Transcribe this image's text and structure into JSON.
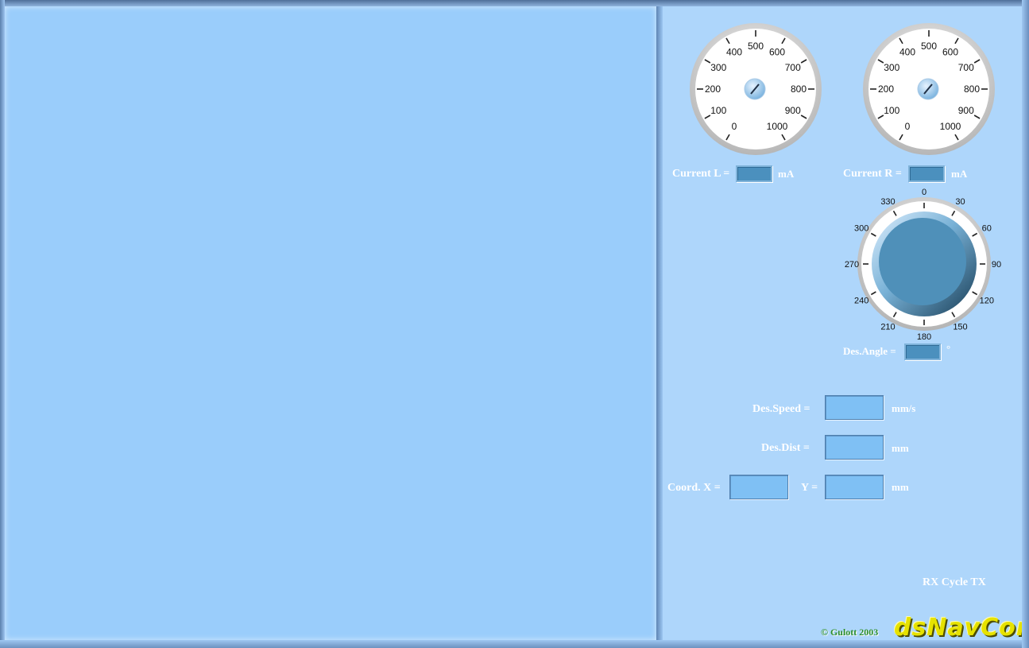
{
  "meters": {
    "left": {
      "ticks": [
        "0",
        "100",
        "200",
        "300",
        "400",
        "500",
        "600",
        "700",
        "800",
        "900",
        "1000"
      ],
      "label": "Current L =",
      "unit": "mA",
      "value": ""
    },
    "right": {
      "ticks": [
        "0",
        "100",
        "200",
        "300",
        "400",
        "500",
        "600",
        "700",
        "800",
        "900",
        "1000"
      ],
      "label": "Current R =",
      "unit": "mA",
      "value": ""
    }
  },
  "angle_dial": {
    "ticks": [
      "0",
      "30",
      "60",
      "90",
      "120",
      "150",
      "180",
      "210",
      "240",
      "270",
      "300",
      "330"
    ],
    "label": "Des.Angle =",
    "unit": "°",
    "value": ""
  },
  "form": {
    "speed_label": "Des.Speed =",
    "speed_unit": "mm/s",
    "speed_value": "",
    "dist_label": "Des.Dist =",
    "dist_unit": "mm",
    "dist_value": "",
    "coord_x_label": "Coord. X =",
    "coord_x_value": "",
    "coord_y_label": "Y =",
    "coord_y_value": "",
    "coord_unit": "mm"
  },
  "status": {
    "text": "RX Cycle TX"
  },
  "footer": {
    "copyright": "© Gulott 2003",
    "logo": "dsNavCon"
  },
  "colors": {
    "canvas": "#9acdfb",
    "panel": "#aed6fb",
    "knob": "#4f90b9",
    "field": "#7fc0f4",
    "logo": "#e6e200"
  }
}
